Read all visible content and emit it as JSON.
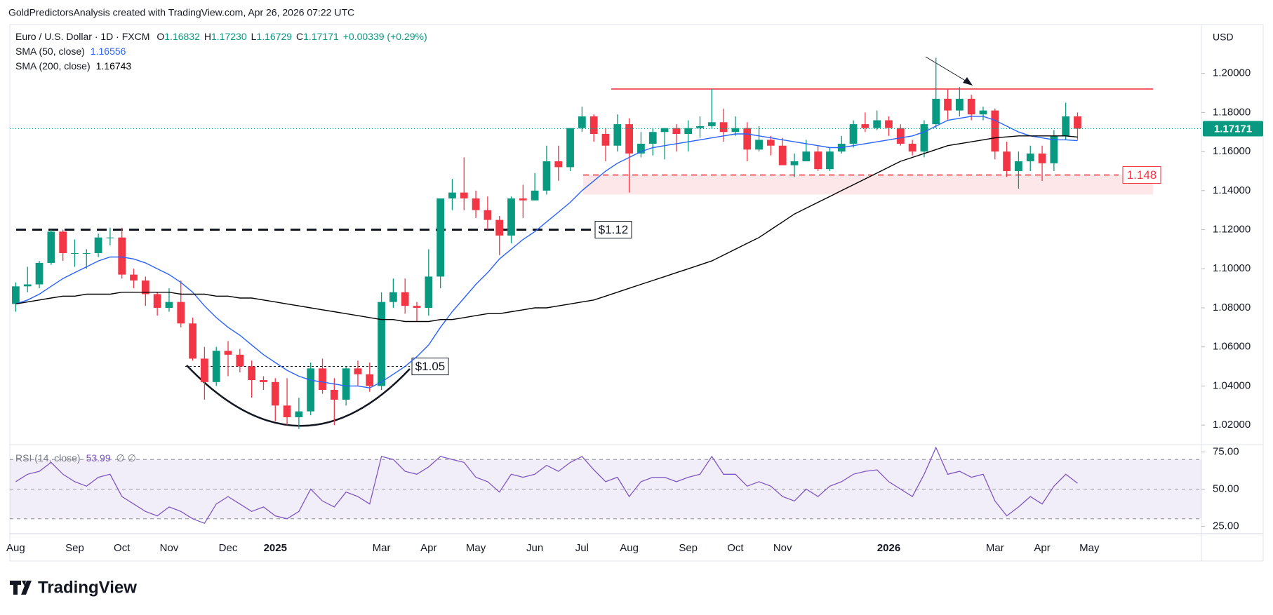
{
  "attribution": "GoldPredictorsAnalysis created with TradingView.com, Apr 26, 2026 07:22 UTC",
  "logo": "TradingView",
  "chart_data": {
    "type": "candlestick",
    "symbol": "Euro / U.S. Dollar · 1D · FXCM",
    "ohlc": [
      {
        "key": "O",
        "value": "1.16832"
      },
      {
        "key": "H",
        "value": "1.17230"
      },
      {
        "key": "L",
        "value": "1.16729"
      },
      {
        "key": "C",
        "value": "1.17171"
      }
    ],
    "change": "+0.00339 (+0.29%)",
    "currency": "USD",
    "up_color": "#089981",
    "down_color": "#f23645",
    "grid": false,
    "categories": [
      "Aug",
      null,
      null,
      null,
      null,
      "Sep",
      null,
      null,
      null,
      "Oct",
      null,
      null,
      null,
      "Nov",
      null,
      null,
      null,
      null,
      "Dec",
      null,
      null,
      null,
      "2025",
      null,
      null,
      null,
      null,
      null,
      null,
      null,
      null,
      "Mar",
      null,
      null,
      null,
      "Apr",
      null,
      null,
      null,
      "May",
      null,
      null,
      null,
      null,
      "Jun",
      null,
      null,
      null,
      "Jul",
      null,
      null,
      null,
      "Aug",
      null,
      null,
      null,
      null,
      "Sep",
      null,
      null,
      null,
      "Oct",
      null,
      null,
      null,
      "Nov",
      null,
      null,
      null,
      null,
      null,
      null,
      null,
      null,
      "2026",
      null,
      null,
      null,
      null,
      null,
      null,
      null,
      null,
      "Mar",
      null,
      null,
      null,
      "Apr",
      null,
      null,
      null,
      "May",
      null,
      null,
      null,
      null,
      null,
      null,
      null,
      null,
      null
    ],
    "open": [
      1.082,
      1.091,
      1.092,
      1.103,
      1.119,
      1.108,
      1.108,
      1.108,
      1.116,
      1.116,
      1.097,
      1.094,
      1.087,
      1.08,
      1.083,
      1.072,
      1.054,
      1.042,
      1.058,
      1.056,
      1.05,
      1.043,
      1.042,
      1.03,
      1.024,
      1.027,
      1.049,
      1.038,
      1.033,
      1.049,
      1.046,
      1.04,
      1.083,
      1.088,
      1.081,
      1.08,
      1.096,
      1.136,
      1.139,
      1.136,
      1.13,
      1.125,
      1.117,
      1.136,
      1.135,
      1.14,
      1.155,
      1.152,
      1.172,
      1.178,
      1.169,
      1.163,
      1.174,
      1.159,
      1.164,
      1.17,
      1.172,
      1.169,
      1.172,
      1.173,
      1.175,
      1.17,
      1.172,
      1.161,
      1.166,
      1.163,
      1.153,
      1.155,
      1.16,
      1.151,
      1.16,
      1.164,
      1.174,
      1.172,
      1.176,
      1.172,
      1.164,
      1.16,
      1.174,
      1.187,
      1.181,
      1.187,
      1.179,
      1.181,
      1.16,
      1.15,
      1.155,
      1.159,
      1.154,
      1.168,
      1.178,
      null,
      null,
      null,
      null,
      null,
      null,
      null,
      null,
      null,
      null
    ],
    "high": [
      1.093,
      1.101,
      1.104,
      1.12,
      1.12,
      1.115,
      1.11,
      1.118,
      1.121,
      1.121,
      1.1,
      1.096,
      1.088,
      1.09,
      1.094,
      1.075,
      1.06,
      1.06,
      1.063,
      1.059,
      1.053,
      1.045,
      1.044,
      1.044,
      1.034,
      1.052,
      1.054,
      1.044,
      1.05,
      1.053,
      1.052,
      1.088,
      1.095,
      1.095,
      1.083,
      1.11,
      1.136,
      1.146,
      1.157,
      1.14,
      1.137,
      1.127,
      1.137,
      1.143,
      1.149,
      1.163,
      1.163,
      1.172,
      1.183,
      1.179,
      1.172,
      1.179,
      1.177,
      1.17,
      1.172,
      1.172,
      1.174,
      1.176,
      1.178,
      1.192,
      1.182,
      1.178,
      1.175,
      1.173,
      1.168,
      1.167,
      1.159,
      1.166,
      1.163,
      1.162,
      1.168,
      1.176,
      1.18,
      1.181,
      1.178,
      1.174,
      1.166,
      1.176,
      1.208,
      1.192,
      1.193,
      1.189,
      1.183,
      1.182,
      1.165,
      1.16,
      1.163,
      1.163,
      1.171,
      1.185,
      1.18,
      null,
      null,
      null,
      null,
      null,
      null,
      null,
      null,
      null,
      null
    ],
    "low": [
      1.078,
      1.088,
      1.09,
      1.102,
      1.104,
      1.101,
      1.1,
      1.106,
      1.112,
      1.095,
      1.09,
      1.081,
      1.076,
      1.078,
      1.07,
      1.053,
      1.033,
      1.04,
      1.045,
      1.047,
      1.034,
      1.038,
      1.022,
      1.02,
      1.018,
      1.025,
      1.036,
      1.02,
      1.03,
      1.04,
      1.037,
      1.038,
      1.08,
      1.077,
      1.073,
      1.076,
      1.09,
      1.13,
      1.13,
      1.126,
      1.12,
      1.107,
      1.113,
      1.126,
      1.135,
      1.138,
      1.145,
      1.15,
      1.17,
      1.165,
      1.155,
      1.16,
      1.139,
      1.157,
      1.158,
      1.156,
      1.16,
      1.16,
      1.167,
      1.172,
      1.165,
      1.168,
      1.155,
      1.16,
      1.158,
      1.153,
      1.147,
      1.155,
      1.15,
      1.15,
      1.159,
      1.162,
      1.17,
      1.171,
      1.168,
      1.163,
      1.158,
      1.157,
      1.172,
      1.176,
      1.178,
      1.176,
      1.176,
      1.156,
      1.147,
      1.141,
      1.15,
      1.145,
      1.15,
      1.166,
      1.166,
      null,
      null,
      null,
      null,
      null,
      null,
      null,
      null,
      null,
      null
    ],
    "close": [
      1.091,
      1.092,
      1.103,
      1.119,
      1.108,
      1.108,
      1.108,
      1.116,
      1.116,
      1.097,
      1.094,
      1.087,
      1.08,
      1.083,
      1.072,
      1.054,
      1.042,
      1.058,
      1.056,
      1.05,
      1.043,
      1.042,
      1.03,
      1.024,
      1.027,
      1.049,
      1.038,
      1.033,
      1.049,
      1.046,
      1.04,
      1.083,
      1.088,
      1.081,
      1.08,
      1.096,
      1.136,
      1.139,
      1.136,
      1.13,
      1.125,
      1.117,
      1.136,
      1.135,
      1.14,
      1.155,
      1.152,
      1.172,
      1.178,
      1.169,
      1.163,
      1.174,
      1.159,
      1.164,
      1.17,
      1.172,
      1.169,
      1.172,
      1.173,
      1.175,
      1.17,
      1.172,
      1.161,
      1.166,
      1.163,
      1.153,
      1.155,
      1.16,
      1.151,
      1.16,
      1.164,
      1.174,
      1.172,
      1.176,
      1.172,
      1.164,
      1.16,
      1.174,
      1.187,
      1.181,
      1.187,
      1.179,
      1.181,
      1.16,
      1.15,
      1.155,
      1.159,
      1.154,
      1.168,
      1.178,
      1.17171,
      null,
      null,
      null,
      null,
      null,
      null,
      null,
      null,
      null,
      null
    ],
    "series": [
      {
        "name": "SMA (50, close)",
        "last_label": "1.16556",
        "color": "#2962ff",
        "values": [
          1.082,
          1.084,
          1.087,
          1.091,
          1.095,
          1.098,
          1.101,
          1.104,
          1.106,
          1.106,
          1.105,
          1.103,
          1.1,
          1.097,
          1.093,
          1.088,
          1.081,
          1.075,
          1.07,
          1.066,
          1.061,
          1.056,
          1.052,
          1.048,
          1.045,
          1.043,
          1.042,
          1.041,
          1.04,
          1.04,
          1.039,
          1.042,
          1.046,
          1.05,
          1.055,
          1.061,
          1.07,
          1.078,
          1.085,
          1.092,
          1.098,
          1.105,
          1.11,
          1.115,
          1.119,
          1.124,
          1.129,
          1.134,
          1.14,
          1.145,
          1.15,
          1.154,
          1.157,
          1.16,
          1.162,
          1.163,
          1.164,
          1.165,
          1.166,
          1.167,
          1.168,
          1.169,
          1.169,
          1.168,
          1.167,
          1.166,
          1.165,
          1.164,
          1.163,
          1.162,
          1.162,
          1.163,
          1.164,
          1.165,
          1.166,
          1.167,
          1.168,
          1.17,
          1.173,
          1.176,
          1.177,
          1.178,
          1.178,
          1.176,
          1.173,
          1.17,
          1.168,
          1.167,
          1.166,
          1.166,
          1.16556,
          null,
          null,
          null,
          null,
          null,
          null,
          null,
          null,
          null,
          null
        ]
      },
      {
        "name": "SMA (200, close)",
        "last_label": "1.16743",
        "color": "#000000",
        "values": [
          1.082,
          1.083,
          1.084,
          1.085,
          1.086,
          1.086,
          1.087,
          1.087,
          1.087,
          1.088,
          1.088,
          1.088,
          1.088,
          1.088,
          1.087,
          1.087,
          1.087,
          1.086,
          1.086,
          1.085,
          1.085,
          1.084,
          1.083,
          1.082,
          1.081,
          1.08,
          1.079,
          1.078,
          1.077,
          1.076,
          1.075,
          1.074,
          1.074,
          1.073,
          1.073,
          1.073,
          1.074,
          1.074,
          1.075,
          1.076,
          1.077,
          1.077,
          1.078,
          1.079,
          1.08,
          1.08,
          1.081,
          1.082,
          1.083,
          1.084,
          1.086,
          1.088,
          1.09,
          1.092,
          1.094,
          1.096,
          1.098,
          1.1,
          1.102,
          1.104,
          1.107,
          1.11,
          1.113,
          1.116,
          1.12,
          1.124,
          1.128,
          1.131,
          1.134,
          1.137,
          1.14,
          1.143,
          1.146,
          1.149,
          1.152,
          1.155,
          1.157,
          1.159,
          1.161,
          1.163,
          1.164,
          1.165,
          1.166,
          1.167,
          1.1675,
          1.168,
          1.168,
          1.168,
          1.168,
          1.168,
          1.16743,
          null,
          null,
          null,
          null,
          null,
          null,
          null,
          null,
          null,
          null
        ]
      }
    ],
    "ylim": [
      1.01,
      1.225
    ],
    "yticks": [
      {
        "value": 1.02,
        "label": "1.02000"
      },
      {
        "value": 1.04,
        "label": "1.04000"
      },
      {
        "value": 1.06,
        "label": "1.06000"
      },
      {
        "value": 1.08,
        "label": "1.08000"
      },
      {
        "value": 1.1,
        "label": "1.10000"
      },
      {
        "value": 1.12,
        "label": "1.12000"
      },
      {
        "value": 1.14,
        "label": "1.14000"
      },
      {
        "value": 1.16,
        "label": "1.16000"
      },
      {
        "value": 1.18,
        "label": "1.18000"
      },
      {
        "value": 1.2,
        "label": "1.20000"
      }
    ],
    "annotations": [
      {
        "label": "$1.12",
        "value": 1.12
      },
      {
        "label": "$1.05",
        "value": 1.05
      },
      {
        "label": "1.148",
        "value": 1.148
      }
    ],
    "resistance_level": 1.192,
    "zone": [
      1.138,
      1.148
    ],
    "rsi": {
      "name": "RSI (14, close)",
      "value_label": "53.99",
      "extra": "∅ ∅",
      "color": "#7e57c2",
      "ylim": [
        20,
        80
      ],
      "yticks": [
        {
          "value": 25,
          "label": "25.00"
        },
        {
          "value": 50,
          "label": "50.00"
        },
        {
          "value": 75,
          "label": "75.00"
        }
      ],
      "levels": [
        30,
        50,
        70
      ],
      "values": [
        55,
        60,
        62,
        68,
        60,
        55,
        52,
        58,
        60,
        45,
        40,
        35,
        32,
        38,
        35,
        30,
        27,
        40,
        45,
        40,
        35,
        38,
        32,
        30,
        35,
        50,
        42,
        38,
        48,
        45,
        40,
        72,
        70,
        62,
        60,
        65,
        72,
        70,
        68,
        58,
        55,
        48,
        60,
        58,
        60,
        66,
        62,
        68,
        72,
        63,
        55,
        58,
        45,
        55,
        58,
        58,
        55,
        58,
        60,
        72,
        60,
        60,
        52,
        55,
        52,
        45,
        42,
        50,
        45,
        52,
        55,
        60,
        62,
        63,
        55,
        50,
        45,
        60,
        78,
        60,
        62,
        58,
        60,
        42,
        32,
        38,
        45,
        40,
        52,
        60,
        53.99,
        null,
        null,
        null,
        null,
        null,
        null,
        null,
        null,
        null,
        null
      ]
    }
  }
}
